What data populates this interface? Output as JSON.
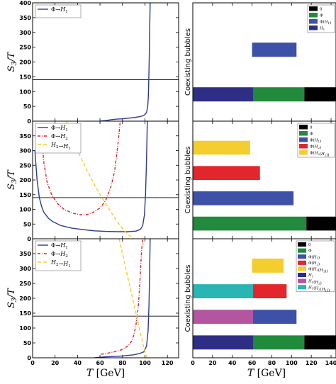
{
  "chart_data": [
    {
      "type": "line",
      "ylabel": "S3/T",
      "xlabel": "",
      "xlim": [
        0,
        130
      ],
      "ylim": [
        0,
        400
      ],
      "yticks": [
        0,
        50,
        100,
        150,
        200,
        250,
        300,
        350,
        400
      ],
      "hline": 140,
      "legend_position": "top-left",
      "series": [
        {
          "name": "Φ→H1",
          "color": "#2f3a8f",
          "style": "solid",
          "x": [
            60,
            65,
            70,
            75,
            80,
            85,
            90,
            95,
            98,
            100,
            101.5,
            102.5,
            103,
            103.5,
            104,
            104.3,
            104.6
          ],
          "y": [
            0,
            2,
            5,
            7,
            8,
            10,
            12,
            15,
            18,
            22,
            30,
            50,
            80,
            150,
            250,
            330,
            400
          ]
        }
      ]
    },
    {
      "type": "line",
      "ylabel": "S3/T",
      "xlabel": "",
      "xlim": [
        0,
        130
      ],
      "ylim": [
        0,
        400
      ],
      "yticks": [
        0,
        50,
        100,
        150,
        200,
        250,
        300,
        350
      ],
      "hline": 140,
      "legend_position": "top-left",
      "series": [
        {
          "name": "Φ→H1",
          "color": "#2f3a8f",
          "style": "solid",
          "x": [
            2,
            4,
            6,
            8,
            10,
            14,
            18,
            25,
            35,
            45,
            55,
            65,
            75,
            85,
            92,
            96,
            98,
            99.5,
            100.5,
            101.3,
            101.8,
            102.1
          ],
          "y": [
            300,
            200,
            140,
            110,
            90,
            70,
            58,
            45,
            36,
            31,
            27,
            25,
            24,
            24,
            26,
            32,
            45,
            80,
            150,
            250,
            340,
            400
          ]
        },
        {
          "name": "Φ→H2",
          "color": "#e0202a",
          "style": "dashdot",
          "x": [
            8,
            10,
            13,
            17,
            22,
            28,
            35,
            42,
            48,
            54,
            60,
            65,
            70,
            73,
            75,
            76.5,
            77.5,
            78
          ],
          "y": [
            350,
            260,
            190,
            150,
            120,
            100,
            88,
            82,
            82,
            90,
            105,
            130,
            180,
            230,
            290,
            340,
            380,
            400
          ]
        },
        {
          "name": "H2→H1",
          "color": "#f5cc30",
          "style": "dashed",
          "x": [
            30,
            35,
            40,
            45,
            50,
            55,
            60,
            65,
            70,
            75,
            80,
            85,
            90
          ],
          "y": [
            400,
            350,
            300,
            260,
            220,
            185,
            150,
            120,
            90,
            60,
            35,
            15,
            0
          ]
        }
      ]
    },
    {
      "type": "line",
      "ylabel": "S3/T",
      "xlabel": "T [GeV]",
      "xlim": [
        0,
        130
      ],
      "ylim": [
        0,
        400
      ],
      "xticks": [
        0,
        20,
        40,
        60,
        80,
        100,
        120
      ],
      "yticks": [
        0,
        50,
        100,
        150,
        200,
        250,
        300,
        350
      ],
      "hline": 140,
      "legend_position": "top-left",
      "series": [
        {
          "name": "Φ→H1",
          "color": "#2f3a8f",
          "style": "solid",
          "x": [
            55,
            60,
            65,
            70,
            75,
            80,
            85,
            90,
            95,
            99,
            101.5,
            102.8,
            103.6,
            104.2,
            104.6
          ],
          "y": [
            0,
            2,
            3,
            4,
            5,
            6,
            8,
            10,
            14,
            20,
            40,
            90,
            180,
            290,
            400
          ]
        },
        {
          "name": "Φ→H2",
          "color": "#e0202a",
          "style": "dashdot",
          "x": [
            61,
            65,
            70,
            75,
            80,
            85,
            88,
            90,
            92,
            94,
            95,
            96,
            97,
            98
          ],
          "y": [
            12,
            14,
            18,
            22,
            28,
            40,
            55,
            75,
            110,
            170,
            220,
            290,
            360,
            400
          ]
        },
        {
          "name": "H2→H1",
          "color": "#f5cc30",
          "style": "dashed",
          "x": [
            77,
            80,
            83,
            86,
            89,
            92,
            95,
            98,
            100,
            102
          ],
          "y": [
            400,
            350,
            300,
            250,
            200,
            150,
            100,
            50,
            20,
            0
          ]
        }
      ]
    },
    {
      "type": "bar",
      "orientation": "horizontal",
      "ylabel": "Coexisting bubbles",
      "xlim": [
        0,
        145
      ],
      "legend_position": "top-right",
      "legend": [
        {
          "label": "0",
          "color": "#000000"
        },
        {
          "label": "Φ",
          "color": "#218a3d"
        },
        {
          "label": "Φ(H1)",
          "color": "#3d51a8"
        },
        {
          "label": "H1",
          "color": "#2e2f84"
        }
      ],
      "rows": [
        {
          "segments": [
            {
              "color": "#2e2f84",
              "start": 0,
              "end": 61
            },
            {
              "color": "#218a3d",
              "start": 61,
              "end": 113
            },
            {
              "color": "#000000",
              "start": 113,
              "end": 145
            }
          ]
        },
        {
          "segments": [
            {
              "color": "#3d51a8",
              "start": 60,
              "end": 105
            }
          ]
        }
      ]
    },
    {
      "type": "bar",
      "orientation": "horizontal",
      "ylabel": "Coexisting bubbles",
      "xlim": [
        0,
        145
      ],
      "legend_position": "top-right",
      "legend": [
        {
          "label": "0",
          "color": "#000000"
        },
        {
          "label": "Φ",
          "color": "#218a3d"
        },
        {
          "label": "Φ(H1)",
          "color": "#3d51a8"
        },
        {
          "label": "Φ(H2)",
          "color": "#e3262b"
        },
        {
          "label": "Φ(H2(H1))",
          "color": "#f4cd2e"
        }
      ],
      "rows": [
        {
          "segments": [
            {
              "color": "#218a3d",
              "start": 0,
              "end": 115
            },
            {
              "color": "#000000",
              "start": 115,
              "end": 145
            }
          ]
        },
        {
          "segments": [
            {
              "color": "#3d51a8",
              "start": 0,
              "end": 102
            }
          ]
        },
        {
          "segments": [
            {
              "color": "#e3262b",
              "start": 0,
              "end": 68
            }
          ]
        },
        {
          "segments": [
            {
              "color": "#f4cd2e",
              "start": 0,
              "end": 58
            }
          ]
        }
      ]
    },
    {
      "type": "bar",
      "orientation": "horizontal",
      "ylabel": "Coexisting bubbles",
      "xlabel": "T [GeV]",
      "xlim": [
        0,
        145
      ],
      "xticks": [
        0,
        20,
        40,
        60,
        80,
        100,
        120,
        140
      ],
      "legend_position": "top-right",
      "legend": [
        {
          "label": "0",
          "color": "#000000"
        },
        {
          "label": "Φ",
          "color": "#218a3d"
        },
        {
          "label": "Φ(H1)",
          "color": "#3d51a8"
        },
        {
          "label": "Φ(H2)",
          "color": "#e3262b"
        },
        {
          "label": "Φ(H2(H1))",
          "color": "#f4cd2e"
        },
        {
          "label": "H1",
          "color": "#2e2f84"
        },
        {
          "label": "H1(H2)",
          "color": "#b3559f"
        },
        {
          "label": "H1(H2(H1))",
          "color": "#2ab5b5"
        }
      ],
      "rows": [
        {
          "segments": [
            {
              "color": "#2e2f84",
              "start": 0,
              "end": 61
            },
            {
              "color": "#218a3d",
              "start": 61,
              "end": 113
            },
            {
              "color": "#000000",
              "start": 113,
              "end": 145
            }
          ]
        },
        {
          "segments": [
            {
              "color": "#b3559f",
              "start": 0,
              "end": 61
            },
            {
              "color": "#3d51a8",
              "start": 61,
              "end": 105
            }
          ]
        },
        {
          "segments": [
            {
              "color": "#2ab5b5",
              "start": 0,
              "end": 61
            },
            {
              "color": "#e3262b",
              "start": 61,
              "end": 95
            }
          ]
        },
        {
          "segments": [
            {
              "color": "#f4cd2e",
              "start": 60,
              "end": 92
            }
          ]
        }
      ]
    }
  ]
}
